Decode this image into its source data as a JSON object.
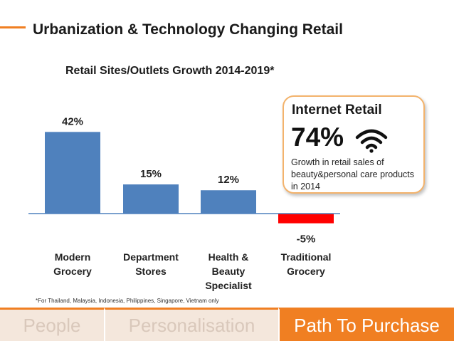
{
  "slide_title": "Urbanization & Technology Changing Retail",
  "chart_data": {
    "type": "bar",
    "title": "Retail Sites/Outlets Growth 2014-2019*",
    "categories": [
      [
        "Modern",
        "Grocery"
      ],
      [
        "Department",
        "Stores"
      ],
      [
        "Health &",
        "Beauty",
        "Specialist"
      ],
      [
        "Traditional",
        "Grocery"
      ]
    ],
    "values": [
      42,
      15,
      12,
      -5
    ],
    "value_labels": [
      "42%",
      "15%",
      "12%",
      "-5%"
    ],
    "colors": [
      "#4f81bd",
      "#4f81bd",
      "#4f81bd",
      "#ff0000"
    ],
    "xlabel": "",
    "ylabel": "",
    "grid": false
  },
  "callout": {
    "title": "Internet Retail",
    "value": "74%",
    "icon": "wifi-icon",
    "description": "Growth in retail sales of beauty&personal care products in 2014",
    "border_color": "#f3b36c"
  },
  "footnote": "*For Thailand, Malaysia, Indonesia, Philippines, Singapore, Vietnam only",
  "tabs": [
    {
      "label": "People",
      "active": false
    },
    {
      "label": "Personalisation",
      "active": false
    },
    {
      "label": "Path To Purchase",
      "active": true
    }
  ],
  "colors": {
    "accent": "#f07f22",
    "bar": "#4f81bd",
    "negative": "#ff0000",
    "tab_inactive_bg": "#f4e7dc"
  }
}
